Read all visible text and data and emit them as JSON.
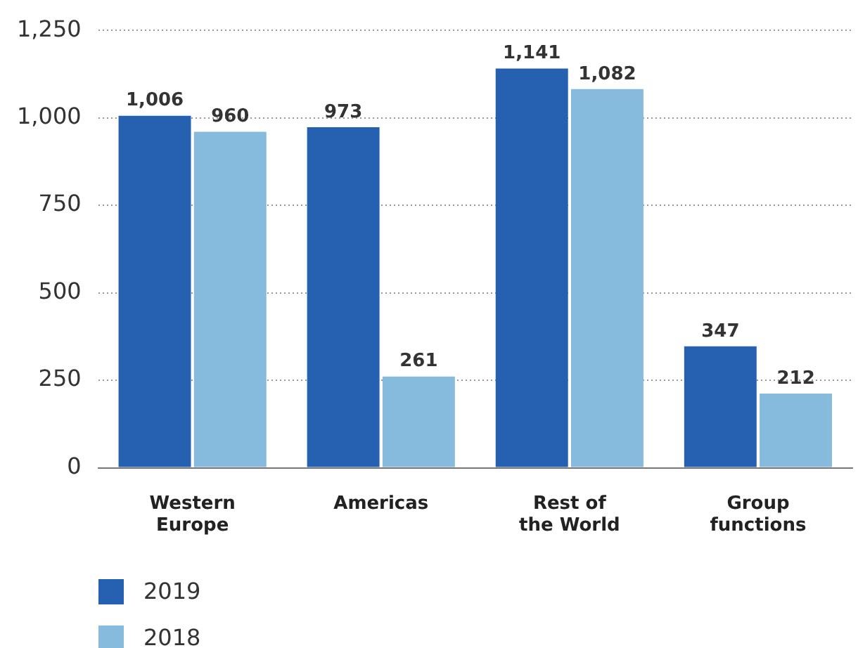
{
  "chart_data": {
    "type": "bar",
    "categories": [
      "Western Europe",
      "Americas",
      "Rest of the World",
      "Group functions"
    ],
    "series": [
      {
        "name": "2019",
        "color": "#2561b0",
        "values": [
          1006,
          973,
          1141,
          347
        ]
      },
      {
        "name": "2018",
        "color": "#87bbdd",
        "values": [
          960,
          261,
          1082,
          212
        ]
      }
    ],
    "ylim": [
      0,
      1250
    ],
    "yticks": [
      0,
      250,
      500,
      750,
      {
        "value": 1000,
        "label": "1,000"
      },
      {
        "value": 1250,
        "label": "1,250"
      }
    ],
    "grid": "y",
    "legend": "bottom left",
    "value_labels": [
      [
        "1,006",
        "973",
        "1,141",
        "347"
      ],
      [
        "960",
        "261",
        "1,082",
        "212"
      ]
    ]
  }
}
